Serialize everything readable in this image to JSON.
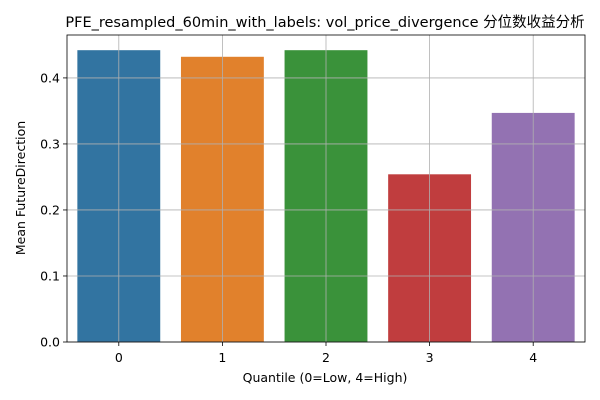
{
  "chart_data": {
    "type": "bar",
    "title": "PFE_resampled_60min_with_labels: vol_price_divergence 分位数收益分析",
    "xlabel": "Quantile (0=Low, 4=High)",
    "ylabel": "Mean FutureDirection",
    "categories": [
      "0",
      "1",
      "2",
      "3",
      "4"
    ],
    "values": [
      0.442,
      0.432,
      0.442,
      0.254,
      0.347
    ],
    "colors": [
      "#3274a1",
      "#e1812c",
      "#3a923a",
      "#c03d3e",
      "#9372b2"
    ],
    "ylim": [
      0,
      0.465
    ],
    "yticks": [
      0.0,
      0.1,
      0.2,
      0.3,
      0.4
    ],
    "ytick_labels": [
      "0.0",
      "0.1",
      "0.2",
      "0.3",
      "0.4"
    ],
    "grid": true,
    "legend": "none"
  }
}
